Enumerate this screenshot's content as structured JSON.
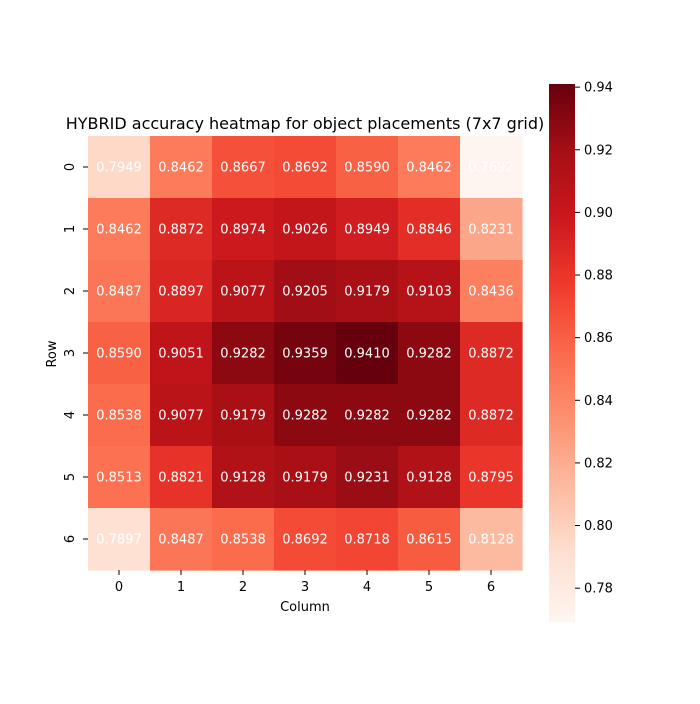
{
  "chart_data": {
    "type": "heatmap",
    "title": "HYBRID accuracy heatmap for object placements (7x7 grid)",
    "xlabel": "Column",
    "ylabel": "Row",
    "x_categories": [
      "0",
      "1",
      "2",
      "3",
      "4",
      "5",
      "6"
    ],
    "y_categories": [
      "0",
      "1",
      "2",
      "3",
      "4",
      "5",
      "6"
    ],
    "values": [
      [
        0.7949,
        0.8462,
        0.8667,
        0.8692,
        0.859,
        0.8462,
        0.7692
      ],
      [
        0.8462,
        0.8872,
        0.8974,
        0.9026,
        0.8949,
        0.8846,
        0.8231
      ],
      [
        0.8487,
        0.8897,
        0.9077,
        0.9205,
        0.9179,
        0.9103,
        0.8436
      ],
      [
        0.859,
        0.9051,
        0.9282,
        0.9359,
        0.941,
        0.9282,
        0.8872
      ],
      [
        0.8538,
        0.9077,
        0.9179,
        0.9282,
        0.9282,
        0.9282,
        0.8872
      ],
      [
        0.8513,
        0.8821,
        0.9128,
        0.9179,
        0.9231,
        0.9128,
        0.8795
      ],
      [
        0.7897,
        0.8487,
        0.8538,
        0.8692,
        0.8718,
        0.8615,
        0.8128
      ]
    ],
    "colormap": "Reds",
    "vmin": 0.7692,
    "vmax": 0.941,
    "colorbar_ticks": [
      "0.78",
      "0.80",
      "0.82",
      "0.84",
      "0.86",
      "0.88",
      "0.90",
      "0.92",
      "0.94"
    ],
    "annotation_color": "#ffffff",
    "grid": false,
    "colorbar_position": "right"
  }
}
